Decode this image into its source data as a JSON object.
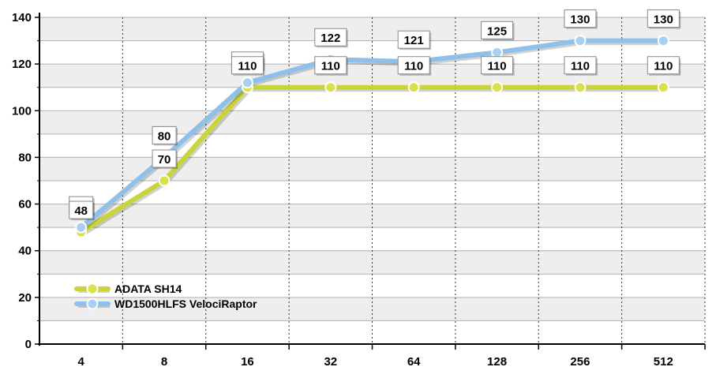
{
  "chart_data": {
    "type": "line",
    "title": "",
    "xlabel": "",
    "ylabel": "",
    "categories": [
      "4",
      "8",
      "16",
      "32",
      "64",
      "128",
      "256",
      "512"
    ],
    "ylim": [
      0,
      140
    ],
    "yticks": [
      0,
      20,
      40,
      60,
      80,
      100,
      120,
      140
    ],
    "grid": true,
    "legend_position": "bottom-left",
    "series": [
      {
        "name": "ADATA SH14",
        "values": [
          48,
          70,
          110,
          110,
          110,
          110,
          110,
          110
        ],
        "color": "#c8d43a",
        "marker_fill": "#d8e04a"
      },
      {
        "name": "WD1500HLFS VelociRaptor",
        "values": [
          50,
          80,
          112,
          122,
          121,
          125,
          130,
          130
        ],
        "color": "#8ec0ea",
        "marker_fill": "#a9d0f2"
      }
    ],
    "colors": {
      "band": "#eeeeee",
      "grid": "#b0b0b0",
      "axis": "#000000",
      "label_box_border": "#888888"
    }
  }
}
